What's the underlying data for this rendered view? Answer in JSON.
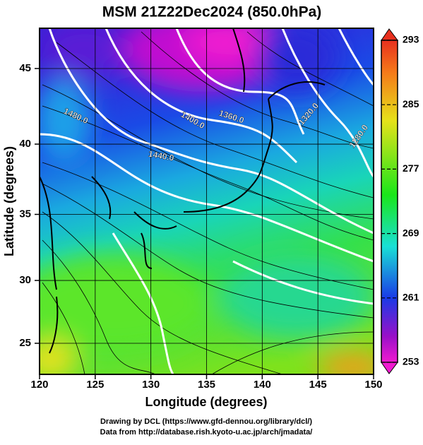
{
  "map": {
    "title": "MSM 21Z22Dec2024 (850.0hPa)",
    "x_label": "Longitude (degrees)",
    "y_label": "Latitude  (degrees)",
    "xticks": [
      120,
      125,
      130,
      135,
      140,
      145,
      150
    ],
    "yticks": [
      25,
      30,
      35,
      40,
      45
    ],
    "colorbar_ticks": [
      293,
      285,
      277,
      269,
      261,
      253
    ],
    "contour_labels": [
      "1480.0",
      "1440.0",
      "1400.0",
      "1360.0",
      "1320.0",
      "1280.0"
    ],
    "footer": [
      "Drawing by DCL (https://www.gfd-dennou.org/library/dcl/)",
      "Data from http://database.rish.kyoto-u.ac.jp/arch/jmadata/"
    ]
  }
}
